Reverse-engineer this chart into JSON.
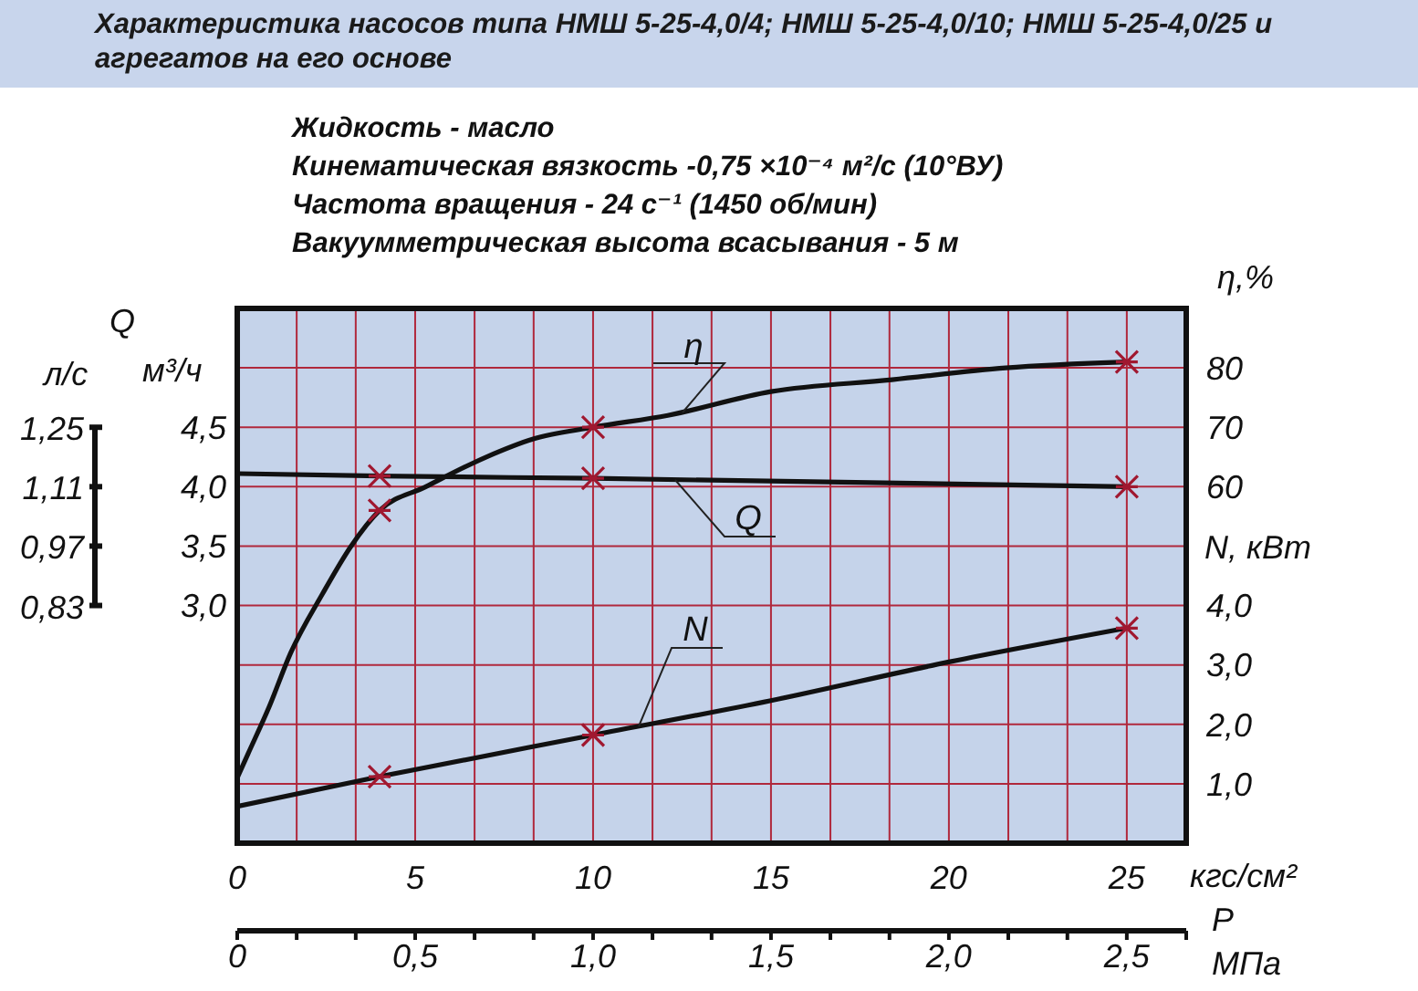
{
  "chart_data": {
    "type": "line",
    "title": "Характеристика насосов типа НМШ 5-25-4,0/4; НМШ 5-25-4,0/10; НМШ 5-25-4,0/25 и агрегатов на его основе",
    "annotations": [
      "Жидкость - масло",
      "Кинематическая вязкость -0,75 ×10⁻⁴ м²/с (10°ВУ)",
      "Частота вращения - 24 с⁻¹ (1450 об/мин)",
      "Вакуумметрическая высота всасывания - 5 м",
      "Q",
      "P",
      "л/с",
      "1,25",
      "1,11",
      "0,97",
      "0,83"
    ],
    "xlabel": "кгс/см²",
    "x2label": "МПа",
    "ylabel": "м³/ч",
    "y2label": "η,%",
    "y3label": "N, кВт",
    "xlim": [
      0,
      26.67
    ],
    "xticks": [
      0,
      5,
      10,
      15,
      20,
      25
    ],
    "x2lim": [
      0,
      2.667
    ],
    "x2ticks": [
      0,
      {
        "value": 0.167,
        "label": null
      },
      {
        "value": 0.333,
        "label": null
      },
      {
        "value": 0.5,
        "label": "0,5"
      },
      {
        "value": 0.667,
        "label": null
      },
      {
        "value": 0.833,
        "label": null
      },
      {
        "value": 1.0,
        "label": "1,0"
      },
      {
        "value": 1.167,
        "label": null
      },
      {
        "value": 1.333,
        "label": null
      },
      {
        "value": 1.5,
        "label": "1,5"
      },
      {
        "value": 1.667,
        "label": null
      },
      {
        "value": 1.833,
        "label": null
      },
      {
        "value": 2.0,
        "label": "2,0"
      },
      {
        "value": 2.167,
        "label": null
      },
      {
        "value": 2.333,
        "label": null
      },
      {
        "value": 2.5,
        "label": "2,5"
      },
      {
        "value": 2.667,
        "label": null
      }
    ],
    "ylim": [
      1.0,
      5.5
    ],
    "yticks": [
      {
        "value": 1.5,
        "label": null
      },
      {
        "value": 2.0,
        "label": null
      },
      {
        "value": 2.5,
        "label": null
      },
      {
        "value": 3.0,
        "label": "3,0"
      },
      {
        "value": 3.5,
        "label": "3,5"
      },
      {
        "value": 4.0,
        "label": "4,0"
      },
      {
        "value": 4.5,
        "label": "4,5"
      },
      {
        "value": 5.0,
        "label": null
      }
    ],
    "y2lim": [
      0,
      90
    ],
    "y2ticks": [
      60,
      70,
      80
    ],
    "y3lim": [
      0,
      9
    ],
    "y3ticks": [
      {
        "value": 1,
        "label": "1,0"
      },
      {
        "value": 2,
        "label": "2,0"
      },
      {
        "value": 3,
        "label": "3,0"
      },
      {
        "value": 4,
        "label": "4,0"
      }
    ],
    "grid": true,
    "series": [
      {
        "name": "η",
        "axis": "y2",
        "color": "#111111",
        "marker": "none",
        "line_style": "solid",
        "x": [
          0,
          0.3,
          0.9,
          1.5,
          2.4,
          3.2,
          4,
          5.3,
          7,
          8.3,
          10,
          12.1,
          15,
          18.4,
          21.6,
          25
        ],
        "values": [
          11,
          15,
          23,
          32,
          42,
          50,
          56,
          60,
          65,
          68,
          70,
          72,
          76,
          78,
          80,
          81
        ]
      },
      {
        "name": "Q",
        "color": "#111111",
        "marker": "none",
        "line_style": "solid",
        "x": [
          0,
          4,
          10,
          25
        ],
        "values": [
          4.11,
          4.09,
          4.07,
          4.0
        ]
      },
      {
        "name": "N",
        "axis": "y3",
        "color": "#111111",
        "marker": "none",
        "line_style": "solid",
        "x": [
          0,
          4,
          10,
          15,
          20,
          25
        ],
        "values": [
          0.62,
          1.12,
          1.82,
          2.4,
          3.05,
          3.62
        ]
      },
      {
        "type": "scatter",
        "axis": "y2",
        "color": "#a01830",
        "marker": "cross",
        "x": [
          4,
          10,
          25
        ],
        "values": [
          56,
          70,
          81
        ]
      },
      {
        "type": "scatter",
        "color": "#a01830",
        "marker": "cross",
        "x": [
          4,
          10,
          25
        ],
        "values": [
          4.09,
          4.07,
          4.0
        ]
      },
      {
        "type": "scatter",
        "axis": "y3",
        "color": "#a01830",
        "marker": "cross",
        "x": [
          4,
          10,
          25
        ],
        "values": [
          1.12,
          1.82,
          3.62
        ]
      }
    ]
  }
}
